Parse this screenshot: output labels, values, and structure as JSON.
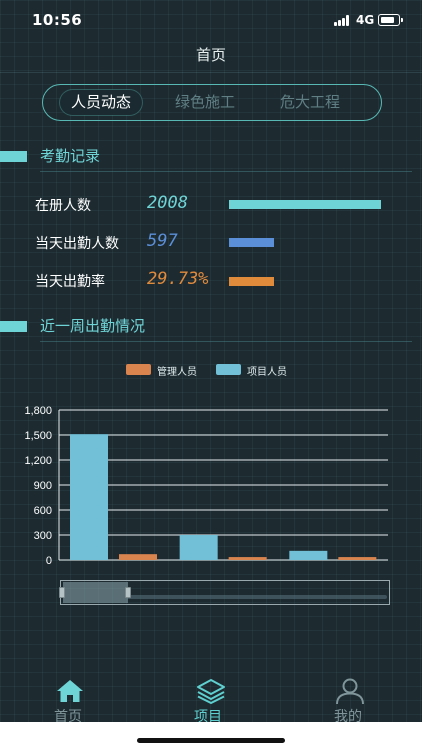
{
  "status_bar": {
    "time": "10:56",
    "network": "4G"
  },
  "nav": {
    "title": "首页"
  },
  "tabs": [
    {
      "label": "人员动态",
      "active": true
    },
    {
      "label": "绿色施工",
      "active": false
    },
    {
      "label": "危大工程",
      "active": false
    }
  ],
  "attendance": {
    "title": "考勤记录",
    "stats": [
      {
        "label": "在册人数",
        "value": "2008",
        "color": "#6fd4d6",
        "bar_fraction": 1.0
      },
      {
        "label": "当天出勤人数",
        "value": "597",
        "color": "#5b8fd8",
        "bar_fraction": 0.297
      },
      {
        "label": "当天出勤率",
        "value": "29.73%",
        "color": "#e08a3c",
        "bar_fraction": 0.297
      }
    ]
  },
  "weekly": {
    "title": "近一周出勤情况"
  },
  "chart_data": {
    "type": "bar",
    "categories": [
      "",
      "",
      ""
    ],
    "series": [
      {
        "name": "管理人员",
        "color": "#d9834f",
        "values": [
          70,
          35,
          35
        ]
      },
      {
        "name": "项目人员",
        "color": "#72bfd8",
        "values": [
          1510,
          300,
          110
        ]
      }
    ],
    "ylim": [
      0,
      1800
    ],
    "yticks": [
      "0",
      "300",
      "600",
      "900",
      "1,200",
      "1,500",
      "1,800"
    ],
    "ytick_values": [
      0,
      300,
      600,
      900,
      1200,
      1500,
      1800
    ],
    "grid": true,
    "legend": "top-center",
    "data_zoom_window": [
      0,
      0.2
    ]
  },
  "bottom_tabs": [
    {
      "label": "首页",
      "icon": "home-icon",
      "active": false
    },
    {
      "label": "项目",
      "icon": "layers-icon",
      "active": true
    },
    {
      "label": "我的",
      "icon": "user-icon",
      "active": false
    }
  ],
  "colors": {
    "accent": "#6fd4d6",
    "background": "#1d2b31",
    "tab_active": "#5fd0cf",
    "tab_inactive": "#7f9599"
  }
}
